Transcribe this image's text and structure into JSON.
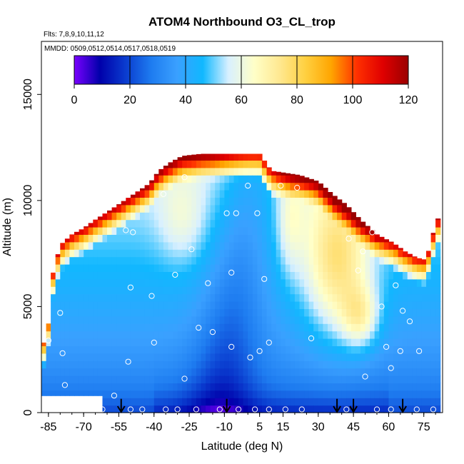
{
  "chart_data": {
    "type": "heatmap",
    "title": "ATOM4 Northbound O3_CL_trop",
    "subtitle_flights": "Flts: 7,8,9,10,11,12",
    "subtitle_dates": "MMDD: 0509,0512,0514,0517,0518,0519",
    "xlabel": "Latitude (deg N)",
    "ylabel": "Altitude (m)",
    "xlim": [
      -88,
      83
    ],
    "ylim": [
      0,
      17500
    ],
    "x_ticks": [
      -85,
      -70,
      -55,
      -40,
      -25,
      -10,
      5,
      15,
      30,
      45,
      60,
      75
    ],
    "y_ticks": [
      0,
      5000,
      10000,
      15000
    ],
    "colorbar": {
      "range": [
        0,
        120
      ],
      "ticks": [
        0,
        20,
        40,
        60,
        80,
        100,
        120
      ],
      "colors": [
        "#7a00ff",
        "#0000aa",
        "#0a3ccf",
        "#1e7cf0",
        "#3aa0ff",
        "#10b8ff",
        "#d8f0ff",
        "#ffffc8",
        "#ffe890",
        "#ffd040",
        "#ffa500",
        "#ff3000",
        "#e00000",
        "#9a0000"
      ]
    },
    "field_description": "Ozone curtain; low values (blue) near surface and tropics, high values (red/yellow) at upper edges and northern mid-latitudes",
    "arrows_latitude": [
      -54,
      -9,
      38,
      45,
      66
    ],
    "sample_points": [
      {
        "lat": -85,
        "alt": 3400
      },
      {
        "lat": -80,
        "alt": 4700
      },
      {
        "lat": -79,
        "alt": 2800
      },
      {
        "lat": -78,
        "alt": 1300
      },
      {
        "lat": -57,
        "alt": 800
      },
      {
        "lat": -52,
        "alt": 8600
      },
      {
        "lat": -49,
        "alt": 8500
      },
      {
        "lat": -50,
        "alt": 5900
      },
      {
        "lat": -51,
        "alt": 2400
      },
      {
        "lat": -41,
        "alt": 5500
      },
      {
        "lat": -40,
        "alt": 3300
      },
      {
        "lat": -36,
        "alt": 10300
      },
      {
        "lat": -31,
        "alt": 6500
      },
      {
        "lat": -27,
        "alt": 11100
      },
      {
        "lat": -24,
        "alt": 7700
      },
      {
        "lat": -27,
        "alt": 1600
      },
      {
        "lat": -21,
        "alt": 4000
      },
      {
        "lat": -17,
        "alt": 6100
      },
      {
        "lat": -15,
        "alt": 3800
      },
      {
        "lat": -9,
        "alt": 9400
      },
      {
        "lat": -5,
        "alt": 9400
      },
      {
        "lat": -7,
        "alt": 6600
      },
      {
        "lat": -7,
        "alt": 3100
      },
      {
        "lat": 0,
        "alt": 10700
      },
      {
        "lat": 1,
        "alt": 2600
      },
      {
        "lat": 4,
        "alt": 9400
      },
      {
        "lat": 5,
        "alt": 2900
      },
      {
        "lat": 7,
        "alt": 6300
      },
      {
        "lat": 9,
        "alt": 3300
      },
      {
        "lat": 14,
        "alt": 10700
      },
      {
        "lat": 21,
        "alt": 10600
      },
      {
        "lat": 27,
        "alt": 3500
      },
      {
        "lat": 43,
        "alt": 8200
      },
      {
        "lat": 47,
        "alt": 6700
      },
      {
        "lat": 49,
        "alt": 7600
      },
      {
        "lat": 50,
        "alt": 1700
      },
      {
        "lat": 53,
        "alt": 8500
      },
      {
        "lat": 57,
        "alt": 5000
      },
      {
        "lat": 59,
        "alt": 3100
      },
      {
        "lat": 61,
        "alt": 2100
      },
      {
        "lat": 63,
        "alt": 6000
      },
      {
        "lat": 65,
        "alt": 2900
      },
      {
        "lat": 66,
        "alt": 4800
      },
      {
        "lat": 69,
        "alt": 4300
      },
      {
        "lat": 73,
        "alt": 2900
      },
      {
        "lat": -70,
        "alt": 150
      },
      {
        "lat": -62,
        "alt": 150
      },
      {
        "lat": -50,
        "alt": 150
      },
      {
        "lat": -45,
        "alt": 150
      },
      {
        "lat": -35,
        "alt": 150
      },
      {
        "lat": -30,
        "alt": 150
      },
      {
        "lat": -22,
        "alt": 150
      },
      {
        "lat": -12,
        "alt": 150
      },
      {
        "lat": -4,
        "alt": 150
      },
      {
        "lat": 3,
        "alt": 150
      },
      {
        "lat": 9,
        "alt": 150
      },
      {
        "lat": 16,
        "alt": 150
      },
      {
        "lat": 23,
        "alt": 150
      },
      {
        "lat": 42,
        "alt": 150
      },
      {
        "lat": 55,
        "alt": 150
      },
      {
        "lat": 61,
        "alt": 150
      },
      {
        "lat": 72,
        "alt": 150
      },
      {
        "lat": 79,
        "alt": 150
      }
    ]
  }
}
